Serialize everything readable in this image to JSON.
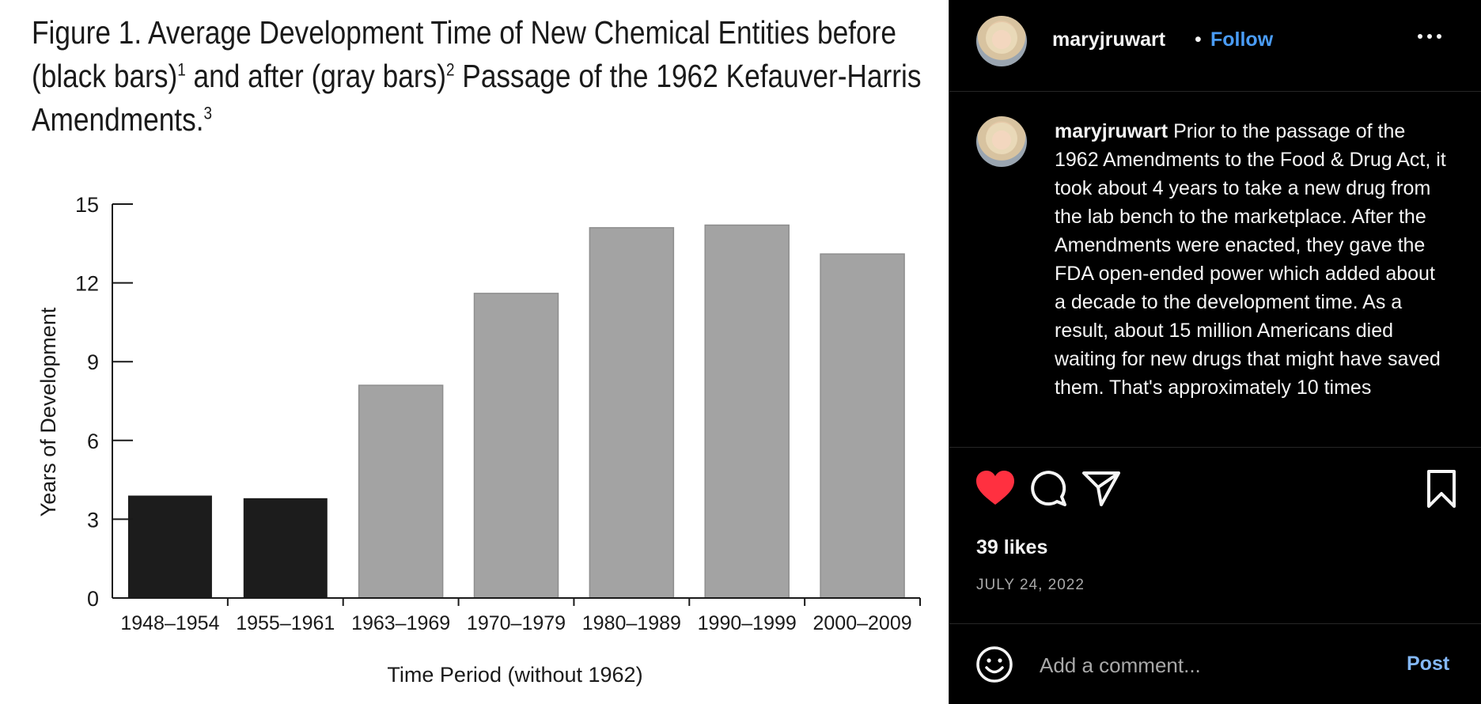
{
  "post_image": {
    "figure_title": {
      "line1": "Figure 1. Average Development Time of New Chemical Entities before",
      "line2_a": "(black bars)",
      "line2_sup1": "1",
      "line2_b": " and after (gray bars)",
      "line2_sup2": "2",
      "line2_c": " Passage of the 1962 Kefauver-Harris",
      "line3": "Amendments.",
      "line3_sup": "3"
    }
  },
  "chart_data": {
    "type": "bar",
    "categories": [
      "1948–1954",
      "1955–1961",
      "1963–1969",
      "1970–1979",
      "1980–1989",
      "1990–1999",
      "2000–2009"
    ],
    "values": [
      3.9,
      3.8,
      8.1,
      11.6,
      14.1,
      14.2,
      13.1
    ],
    "bar_colors": [
      "#1c1c1c",
      "#1c1c1c",
      "#a3a3a3",
      "#a3a3a3",
      "#a3a3a3",
      "#a3a3a3",
      "#a3a3a3"
    ],
    "ylim": [
      0,
      15
    ],
    "yticks": [
      0,
      3,
      6,
      9,
      12,
      15
    ],
    "xlabel": "Time Period (without 1962)",
    "ylabel": "Years of Development",
    "grid": false
  },
  "header": {
    "username": "maryjruwart",
    "separator": "•",
    "follow_label": "Follow",
    "more_icon": "more-horizontal-icon"
  },
  "caption": {
    "username": "maryjruwart",
    "text": "Prior to the passage of the 1962 Amendments to the Food & Drug Act, it took about 4 years to take a new drug from the lab bench to the marketplace. After the Amendments were enacted, they gave the FDA open-ended power which added about a decade to the development time. As a result, about 15 million Americans died waiting for new drugs that might have saved them. That's approximately 10 times"
  },
  "actions": {
    "like_icon": "heart-icon",
    "like_color": "#ff3040",
    "comment_icon": "comment-icon",
    "share_icon": "share-icon",
    "save_icon": "bookmark-icon"
  },
  "likes_text": "39 likes",
  "date_text": "JULY 24, 2022",
  "comment_box": {
    "placeholder": "Add a comment...",
    "post_label": "Post",
    "emoji_icon": "emoji-icon"
  },
  "colors": {
    "accent": "#4a9cf6",
    "background": "#000000"
  }
}
